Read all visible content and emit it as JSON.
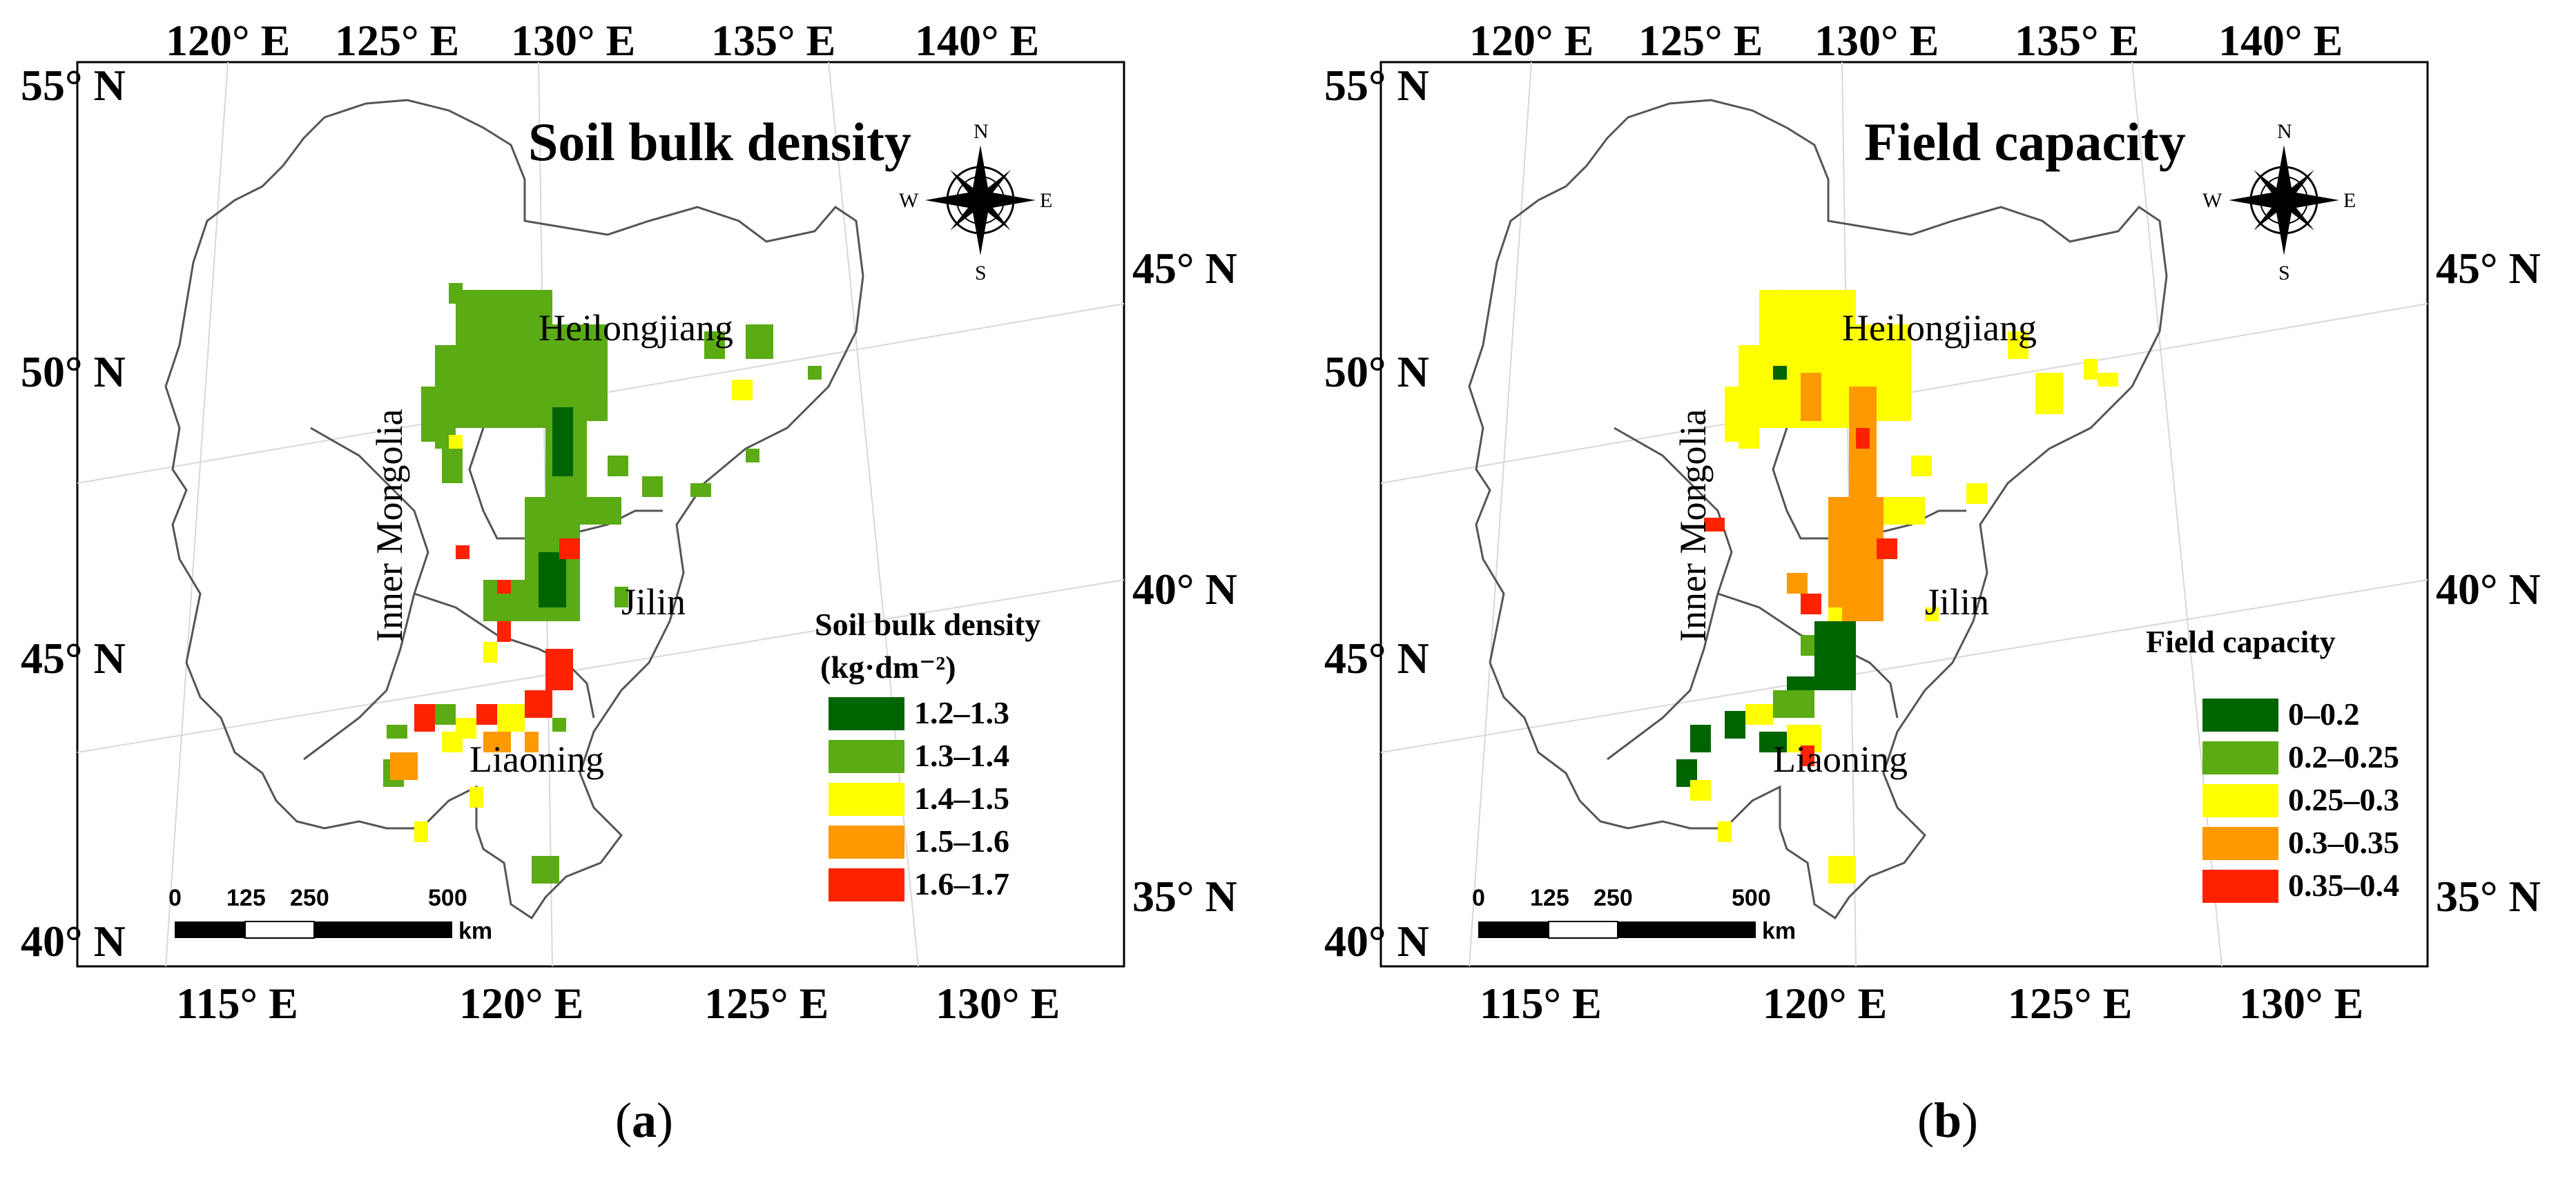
{
  "panels": [
    {
      "title": "Soil bulk density",
      "caption_letter": "a",
      "legend_title_line1": "Soil bulk density",
      "legend_title_line2": "(kg·dm⁻²)",
      "classes": [
        {
          "label": "1.2–1.3",
          "color": "#006400"
        },
        {
          "label": "1.3–1.4",
          "color": "#5aab14"
        },
        {
          "label": "1.4–1.5",
          "color": "#ffff00"
        },
        {
          "label": "1.5–1.6",
          "color": "#ff9900"
        },
        {
          "label": "1.6–1.7",
          "color": "#ff2200"
        }
      ],
      "regions": {
        "heilongjiang": "Heilongjiang",
        "jilin": "Jilin",
        "liaoning": "Liaoning",
        "inner_mongolia": "Inner Mongolia"
      }
    },
    {
      "title": "Field capacity",
      "caption_letter": "b",
      "legend_title_line1": "Field capacity",
      "legend_title_line2": "",
      "classes": [
        {
          "label": "0–0.2",
          "color": "#006400"
        },
        {
          "label": "0.2–0.25",
          "color": "#5aab14"
        },
        {
          "label": "0.25–0.3",
          "color": "#ffff00"
        },
        {
          "label": "0.3–0.35",
          "color": "#ff9900"
        },
        {
          "label": "0.35–0.4",
          "color": "#ff2200"
        }
      ],
      "regions": {
        "heilongjiang": "Heilongjiang",
        "jilin": "Jilin",
        "liaoning": "Liaoning",
        "inner_mongolia": "Inner Mongolia"
      }
    }
  ],
  "axes": {
    "top_lon": [
      "120° E",
      "125° E",
      "130° E",
      "135° E",
      "140° E"
    ],
    "bottom_lon": [
      "115° E",
      "120° E",
      "125° E",
      "130° E"
    ],
    "left_lat": [
      "55° N",
      "50° N",
      "45° N",
      "40° N"
    ],
    "right_lat": [
      "45° N",
      "40° N",
      "35° N"
    ]
  },
  "scale_bar": {
    "labels": [
      "0",
      "125",
      "250",
      "500"
    ],
    "unit": "km"
  },
  "compass": {
    "n": "N",
    "s": "S",
    "e": "E",
    "w": "W"
  }
}
